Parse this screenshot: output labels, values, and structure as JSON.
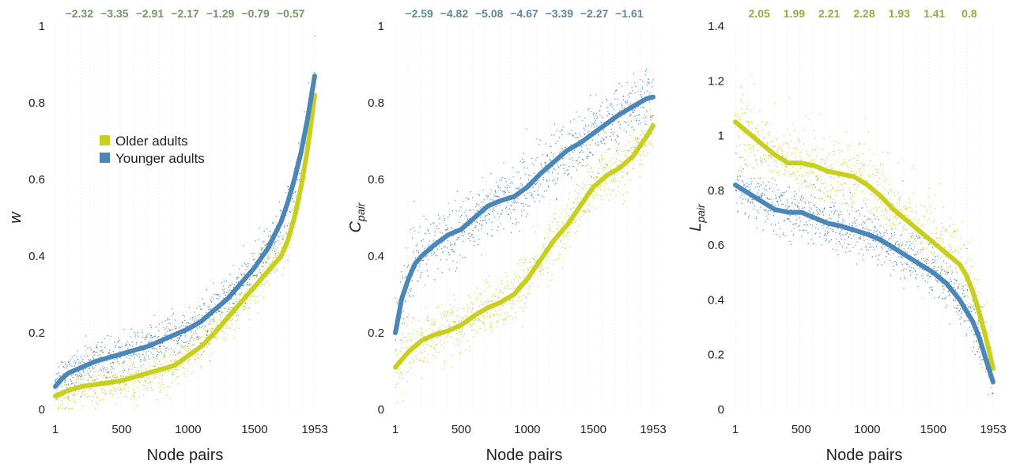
{
  "colors": {
    "older": "#c9cf1f",
    "younger": "#4a86b8",
    "annot_green": "#6f9a5e",
    "annot_blue": "#5b87a0",
    "annot_olive": "#9aaa3a",
    "grid": "#e3e3e3"
  },
  "legend": {
    "items": [
      {
        "label": "Older adults",
        "color": "#c9cf1f"
      },
      {
        "label": "Younger adults",
        "color": "#4a86b8"
      }
    ]
  },
  "chart_data": [
    {
      "type": "line",
      "xlabel": "Node pairs",
      "ylabel": "w",
      "ylabel_sub": "",
      "ylim": [
        0,
        1
      ],
      "xlim": [
        1,
        1953
      ],
      "xticks": [
        1,
        500,
        1000,
        1500,
        1953
      ],
      "yticks": [
        "0",
        "0.2",
        "0.4",
        "0.6",
        "0.8",
        "1"
      ],
      "yticks_values": [
        0,
        0.2,
        0.4,
        0.6,
        0.8,
        1
      ],
      "annotations": [
        "−2.32",
        "−3.35",
        "−2.91",
        "−2.17",
        "−1.29",
        "−0.79",
        "−0.57"
      ],
      "annotation_color": "#6f9a5e",
      "grid": "vertical dotted",
      "legend": "upper-left",
      "series": [
        {
          "name": "Older adults",
          "color": "#c9cf1f",
          "x": [
            1,
            100,
            200,
            300,
            400,
            500,
            600,
            700,
            800,
            900,
            1000,
            1100,
            1200,
            1300,
            1400,
            1500,
            1600,
            1700,
            1750,
            1800,
            1850,
            1900,
            1953
          ],
          "y": [
            0.035,
            0.05,
            0.06,
            0.065,
            0.07,
            0.075,
            0.085,
            0.095,
            0.105,
            0.115,
            0.14,
            0.165,
            0.2,
            0.24,
            0.28,
            0.32,
            0.36,
            0.4,
            0.44,
            0.5,
            0.58,
            0.68,
            0.82
          ],
          "spread": 0.035
        },
        {
          "name": "Younger adults",
          "color": "#4a86b8",
          "x": [
            1,
            50,
            100,
            200,
            300,
            400,
            500,
            600,
            700,
            800,
            900,
            1000,
            1100,
            1200,
            1300,
            1400,
            1500,
            1600,
            1700,
            1750,
            1800,
            1850,
            1900,
            1953
          ],
          "y": [
            0.06,
            0.08,
            0.095,
            0.11,
            0.125,
            0.135,
            0.145,
            0.155,
            0.165,
            0.18,
            0.195,
            0.21,
            0.23,
            0.26,
            0.29,
            0.33,
            0.37,
            0.42,
            0.49,
            0.54,
            0.6,
            0.67,
            0.76,
            0.87
          ],
          "spread": 0.035
        }
      ]
    },
    {
      "type": "line",
      "xlabel": "Node pairs",
      "ylabel": "C",
      "ylabel_sub": "pair",
      "ylim": [
        0,
        1
      ],
      "xlim": [
        1,
        1953
      ],
      "xticks": [
        1,
        500,
        1000,
        1500,
        1953
      ],
      "yticks": [
        "0",
        "0.2",
        "0.4",
        "0.6",
        "0.8",
        "1"
      ],
      "yticks_values": [
        0,
        0.2,
        0.4,
        0.6,
        0.8,
        1
      ],
      "annotations": [
        "−2.59",
        "−4.82",
        "−5.08",
        "−4.67",
        "−3.39",
        "−2.27",
        "−1.61"
      ],
      "annotation_color": "#5b87a0",
      "grid": "vertical dotted",
      "series": [
        {
          "name": "Older adults",
          "color": "#c9cf1f",
          "x": [
            1,
            100,
            200,
            300,
            400,
            500,
            600,
            700,
            800,
            900,
            1000,
            1100,
            1200,
            1300,
            1400,
            1500,
            1600,
            1700,
            1800,
            1900,
            1953
          ],
          "y": [
            0.11,
            0.15,
            0.18,
            0.195,
            0.205,
            0.22,
            0.245,
            0.265,
            0.28,
            0.3,
            0.34,
            0.39,
            0.44,
            0.48,
            0.53,
            0.58,
            0.61,
            0.63,
            0.66,
            0.71,
            0.74
          ],
          "spread": 0.045
        },
        {
          "name": "Younger adults",
          "color": "#4a86b8",
          "x": [
            1,
            50,
            100,
            150,
            200,
            300,
            400,
            500,
            600,
            700,
            800,
            900,
            1000,
            1100,
            1200,
            1300,
            1400,
            1500,
            1600,
            1700,
            1800,
            1900,
            1953
          ],
          "y": [
            0.2,
            0.29,
            0.34,
            0.38,
            0.4,
            0.43,
            0.455,
            0.47,
            0.5,
            0.53,
            0.545,
            0.555,
            0.58,
            0.615,
            0.645,
            0.675,
            0.695,
            0.72,
            0.745,
            0.77,
            0.79,
            0.81,
            0.815
          ],
          "spread": 0.05
        }
      ]
    },
    {
      "type": "line",
      "xlabel": "Node pairs",
      "ylabel": "L",
      "ylabel_sub": "pair",
      "ylim": [
        0,
        1.4
      ],
      "xlim": [
        1,
        1953
      ],
      "xticks": [
        1,
        500,
        1000,
        1500,
        1953
      ],
      "yticks": [
        "0",
        "0.2",
        "0.4",
        "0.6",
        "0.8",
        "1",
        "1.2",
        "1.4"
      ],
      "yticks_values": [
        0,
        0.2,
        0.4,
        0.6,
        0.8,
        1,
        1.2,
        1.4
      ],
      "annotations": [
        "2.05",
        "1.99",
        "2.21",
        "2.28",
        "1.93",
        "1.41",
        "0.8"
      ],
      "annotation_color": "#9aaa3a",
      "grid": "vertical dotted",
      "series": [
        {
          "name": "Older adults",
          "color": "#c9cf1f",
          "x": [
            1,
            100,
            200,
            300,
            400,
            500,
            600,
            700,
            800,
            900,
            1000,
            1100,
            1200,
            1300,
            1400,
            1500,
            1600,
            1700,
            1750,
            1800,
            1850,
            1900,
            1953
          ],
          "y": [
            1.05,
            1.01,
            0.97,
            0.93,
            0.9,
            0.9,
            0.89,
            0.87,
            0.86,
            0.85,
            0.82,
            0.78,
            0.73,
            0.69,
            0.65,
            0.61,
            0.57,
            0.53,
            0.49,
            0.43,
            0.35,
            0.26,
            0.15
          ],
          "spread": 0.09
        },
        {
          "name": "Younger adults",
          "color": "#4a86b8",
          "x": [
            1,
            100,
            200,
            300,
            400,
            500,
            600,
            700,
            800,
            900,
            1000,
            1100,
            1200,
            1300,
            1400,
            1500,
            1600,
            1700,
            1750,
            1800,
            1850,
            1900,
            1953
          ],
          "y": [
            0.82,
            0.79,
            0.76,
            0.73,
            0.72,
            0.72,
            0.7,
            0.68,
            0.67,
            0.655,
            0.64,
            0.62,
            0.59,
            0.56,
            0.53,
            0.5,
            0.46,
            0.4,
            0.36,
            0.32,
            0.26,
            0.18,
            0.1
          ],
          "spread": 0.06
        }
      ]
    }
  ]
}
